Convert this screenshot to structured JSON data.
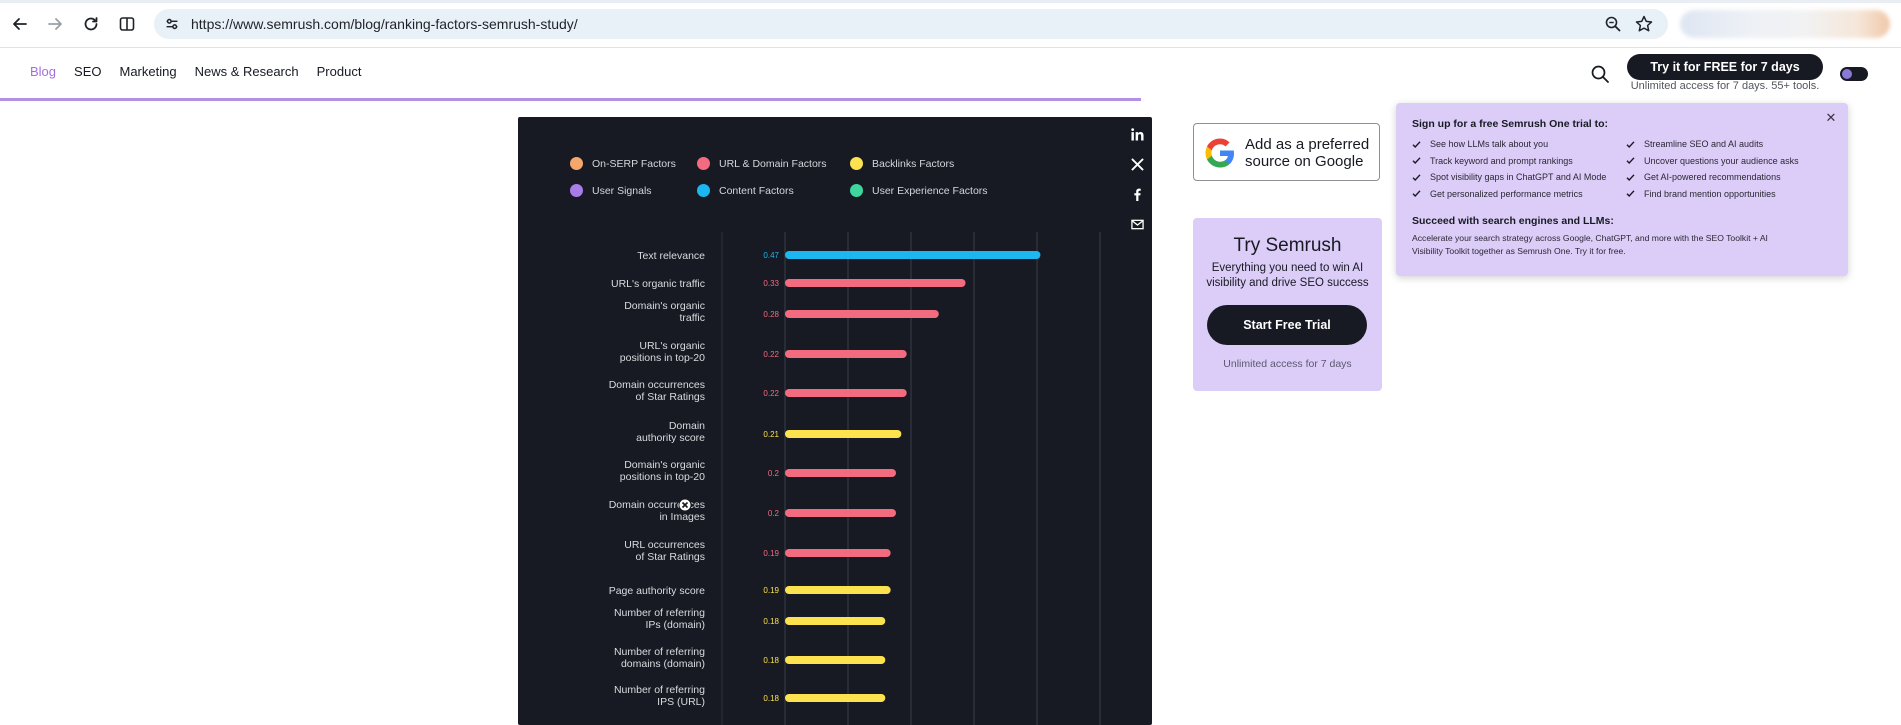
{
  "browser": {
    "url": "https://www.semrush.com/blog/ranking-factors-semrush-study/"
  },
  "nav": {
    "items": [
      {
        "label": "Blog",
        "active": true
      },
      {
        "label": "SEO",
        "active": false
      },
      {
        "label": "Marketing",
        "active": false
      },
      {
        "label": "News & Research",
        "active": false
      },
      {
        "label": "Product",
        "active": false
      }
    ]
  },
  "header": {
    "cta_label": "Try it for FREE for 7 days",
    "cta_sub": "Unlimited access for 7 days. 55+ tools."
  },
  "share_icons": [
    "linkedin-icon",
    "x-icon",
    "facebook-icon",
    "email-icon"
  ],
  "chart_data": {
    "type": "bar",
    "orientation": "horizontal",
    "legend": [
      {
        "name": "On-SERP Factors",
        "color": "#f5a66a"
      },
      {
        "name": "URL & Domain Factors",
        "color": "#f36b7f"
      },
      {
        "name": "Backlinks Factors",
        "color": "#fce24f"
      },
      {
        "name": "User Signals",
        "color": "#a97de8"
      },
      {
        "name": "Content Factors",
        "color": "#1cb6f0"
      },
      {
        "name": "User Experience Factors",
        "color": "#3ed69c"
      }
    ],
    "categories": [
      [
        "Text relevance"
      ],
      [
        "URL's organic traffic"
      ],
      [
        "Domain's organic",
        "traffic"
      ],
      [
        "URL's organic",
        "positions in top-20"
      ],
      [
        "Domain occurrences",
        "of Star Ratings"
      ],
      [
        "Domain",
        "authority score"
      ],
      [
        "Domain's organic",
        "positions in top-20"
      ],
      [
        "Domain occurrences",
        "in Images"
      ],
      [
        "URL occurrences",
        "of Star Ratings"
      ],
      [
        "Page authority score"
      ],
      [
        "Number of referring",
        "IPs (domain)"
      ],
      [
        "Number of referring",
        "domains (domain)"
      ],
      [
        "Number of referring",
        "IPS (URL)"
      ]
    ],
    "values": [
      0.47,
      0.33,
      0.28,
      0.22,
      0.22,
      0.21,
      0.2,
      0.2,
      0.19,
      0.19,
      0.18,
      0.18,
      0.18
    ],
    "value_labels": [
      "0.47",
      "0.33",
      "0.28",
      "0.22",
      "0.22",
      "0.21",
      "0.2",
      "0.2",
      "0.19",
      "0.19",
      "0.18",
      "0.18",
      "0.18"
    ],
    "groups": [
      "Content Factors",
      "URL & Domain Factors",
      "URL & Domain Factors",
      "URL & Domain Factors",
      "URL & Domain Factors",
      "Backlinks Factors",
      "URL & Domain Factors",
      "URL & Domain Factors",
      "URL & Domain Factors",
      "Backlinks Factors",
      "Backlinks Factors",
      "Backlinks Factors",
      "Backlinks Factors"
    ],
    "xlim": [
      0,
      0.6
    ],
    "grid": true
  },
  "google_source": {
    "line1": "Add as a preferred",
    "line2": "source on Google"
  },
  "try_card": {
    "title": "Try Semrush",
    "desc": "Everything you need to win AI visibility and drive SEO success",
    "button": "Start Free Trial",
    "foot": "Unlimited access for 7 days"
  },
  "popover": {
    "heading": "Sign up for a free Semrush One trial to:",
    "left_items": [
      "See how LLMs talk about you",
      "Track keyword and prompt rankings",
      "Spot visibility gaps in ChatGPT and AI Mode",
      "Get personalized performance metrics"
    ],
    "right_items": [
      "Streamline SEO and AI audits",
      "Uncover questions your audience asks",
      "Get AI-powered recommendations",
      "Find brand mention opportunities"
    ],
    "heading2": "Succeed with search engines and LLMs:",
    "body2": "Accelerate your search strategy across Google, ChatGPT, and more with the SEO Toolkit + AI Visibility Toolkit together as Semrush One. Try it for free."
  }
}
